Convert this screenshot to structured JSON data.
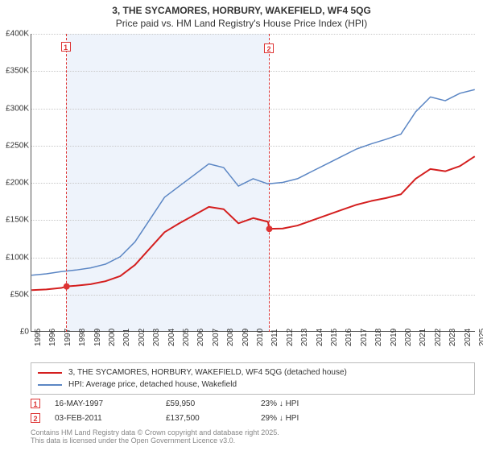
{
  "title_main": "3, THE SYCAMORES, HORBURY, WAKEFIELD, WF4 5QG",
  "title_sub": "Price paid vs. HM Land Registry's House Price Index (HPI)",
  "colors": {
    "subject_line": "#d41f1f",
    "hpi_line": "#5b86c4",
    "grid": "#c8c8c8",
    "axis": "#555555",
    "shaded_bg": "#eef3fb",
    "marker": "#d41f1f",
    "text": "#333333",
    "footer": "#888888",
    "background": "#ffffff"
  },
  "chart": {
    "type": "line",
    "x_years": [
      1995,
      1996,
      1997,
      1998,
      1999,
      2000,
      2001,
      2002,
      2003,
      2004,
      2005,
      2006,
      2007,
      2008,
      2009,
      2010,
      2011,
      2012,
      2013,
      2014,
      2015,
      2016,
      2017,
      2018,
      2019,
      2020,
      2021,
      2022,
      2023,
      2024,
      2025
    ],
    "xlim": [
      1995,
      2025
    ],
    "ylim": [
      0,
      400000
    ],
    "ytick_step": 50000,
    "ytick_labels": [
      "£0",
      "£50K",
      "£100K",
      "£150K",
      "£200K",
      "£250K",
      "£300K",
      "£350K",
      "£400K"
    ],
    "shaded_region": {
      "start": 1997.37,
      "end": 2011.09
    },
    "series": {
      "hpi": {
        "label": "HPI: Average price, detached house, Wakefield",
        "color": "#5b86c4",
        "width": 1.5,
        "data": [
          [
            1995,
            75000
          ],
          [
            1996,
            77000
          ],
          [
            1997,
            80000
          ],
          [
            1998,
            82000
          ],
          [
            1999,
            85000
          ],
          [
            2000,
            90000
          ],
          [
            2001,
            100000
          ],
          [
            2002,
            120000
          ],
          [
            2003,
            150000
          ],
          [
            2004,
            180000
          ],
          [
            2005,
            195000
          ],
          [
            2006,
            210000
          ],
          [
            2007,
            225000
          ],
          [
            2008,
            220000
          ],
          [
            2009,
            195000
          ],
          [
            2010,
            205000
          ],
          [
            2011,
            198000
          ],
          [
            2012,
            200000
          ],
          [
            2013,
            205000
          ],
          [
            2014,
            215000
          ],
          [
            2015,
            225000
          ],
          [
            2016,
            235000
          ],
          [
            2017,
            245000
          ],
          [
            2018,
            252000
          ],
          [
            2019,
            258000
          ],
          [
            2020,
            265000
          ],
          [
            2021,
            295000
          ],
          [
            2022,
            315000
          ],
          [
            2023,
            310000
          ],
          [
            2024,
            320000
          ],
          [
            2025,
            325000
          ]
        ]
      },
      "subject": {
        "label": "3, THE SYCAMORES, HORBURY, WAKEFIELD, WF4 5QG (detached house)",
        "color": "#d41f1f",
        "width": 2,
        "data": [
          [
            1995,
            55000
          ],
          [
            1996,
            56000
          ],
          [
            1997,
            58000
          ],
          [
            1997.37,
            59950
          ],
          [
            1998,
            61000
          ],
          [
            1999,
            63000
          ],
          [
            2000,
            67000
          ],
          [
            2001,
            74000
          ],
          [
            2002,
            89000
          ],
          [
            2003,
            111000
          ],
          [
            2004,
            133000
          ],
          [
            2005,
            145000
          ],
          [
            2006,
            156000
          ],
          [
            2007,
            167000
          ],
          [
            2008,
            164000
          ],
          [
            2009,
            145000
          ],
          [
            2010,
            152000
          ],
          [
            2011,
            147000
          ],
          [
            2011.09,
            137500
          ],
          [
            2012,
            138000
          ],
          [
            2013,
            142000
          ],
          [
            2014,
            149000
          ],
          [
            2015,
            156000
          ],
          [
            2016,
            163000
          ],
          [
            2017,
            170000
          ],
          [
            2018,
            175000
          ],
          [
            2019,
            179000
          ],
          [
            2020,
            184000
          ],
          [
            2021,
            205000
          ],
          [
            2022,
            218000
          ],
          [
            2023,
            215000
          ],
          [
            2024,
            222000
          ],
          [
            2025,
            235000
          ]
        ]
      }
    },
    "price_points": [
      {
        "n": "1",
        "year": 1997.37,
        "price": 59950,
        "date": "16-MAY-1997",
        "price_label": "£59,950",
        "vs_hpi": "23% ↓ HPI"
      },
      {
        "n": "2",
        "year": 2011.09,
        "price": 137500,
        "date": "03-FEB-2011",
        "price_label": "£137,500",
        "vs_hpi": "29% ↓ HPI"
      }
    ]
  },
  "legend": {
    "row1_label": "3, THE SYCAMORES, HORBURY, WAKEFIELD, WF4 5QG (detached house)",
    "row2_label": "HPI: Average price, detached house, Wakefield"
  },
  "footer_line1": "Contains HM Land Registry data © Crown copyright and database right 2025.",
  "footer_line2": "This data is licensed under the Open Government Licence v3.0."
}
